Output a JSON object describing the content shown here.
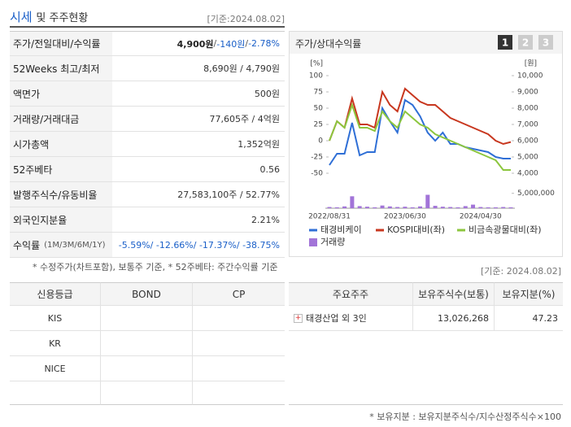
{
  "header": {
    "title_main": "시세",
    "title_rest": "및 주주현황",
    "date": "[기준:2024.08.02]"
  },
  "quote_table": {
    "rows": [
      {
        "label": "주가/전일대비/수익률",
        "value": [
          "4,900원",
          " / ",
          "-140원",
          " / ",
          "-2.78%"
        ]
      },
      {
        "label": "52Weeks 최고/최저",
        "value": [
          "8,690원 / 4,790원"
        ]
      },
      {
        "label": "액면가",
        "value": [
          "500원"
        ]
      },
      {
        "label": "거래량/거래대금",
        "value": [
          "77,605주 / 4억원"
        ]
      },
      {
        "label": "시가총액",
        "value": [
          "1,352억원"
        ]
      },
      {
        "label": "52주베타",
        "value": [
          "0.56"
        ]
      },
      {
        "label": "발행주식수/유동비율",
        "value": [
          "27,583,100주 / 52.77%"
        ]
      },
      {
        "label": "외국인지분율",
        "value": [
          "2.21%"
        ]
      },
      {
        "label": "수익률",
        "label_note": "(1M/3M/6M/1Y)",
        "value": [
          "-5.59%/ -12.66%/ -17.37%/ -38.75%"
        ]
      }
    ]
  },
  "quote_note": "* 수정주가(차트포함), 보통주 기준, * 52주베타: 주간수익률 기준",
  "holders_date": "[기준: 2024.08.02]",
  "credit_table": {
    "headers": [
      "신용등급",
      "BOND",
      "CP"
    ],
    "rows": [
      [
        "KIS"
      ],
      [
        "KR"
      ],
      [
        "NICE"
      ]
    ]
  },
  "holders_table": {
    "headers": [
      "주요주주",
      "보유주식수(보통)",
      "보유지분(%)"
    ],
    "rows": [
      [
        "태경산업 외 3인",
        "13,026,268",
        "47.23"
      ]
    ]
  },
  "holders_note": "* 보유지분 : 보유지분주식수/지수산정주식수×100",
  "chart_data": {
    "type": "line",
    "title": "주가/상대수익률",
    "buttons": [
      "1",
      "2",
      "3"
    ],
    "x": [
      "2022/08/31",
      null,
      null,
      null,
      null,
      null,
      null,
      null,
      null,
      null,
      "2023/06/30",
      null,
      null,
      null,
      null,
      null,
      null,
      null,
      null,
      null,
      "2024/04/30",
      null,
      null,
      null,
      null
    ],
    "y_unit": "[%]",
    "y2_unit": "[원]",
    "ylim": [
      -50,
      100
    ],
    "yticks": [
      -50,
      -25,
      0,
      25,
      50,
      75,
      100
    ],
    "y2lim": [
      4000,
      10000
    ],
    "y2ticks": [
      {
        "value": 4000,
        "label": "4,000"
      },
      {
        "value": 5000,
        "label": "5,000"
      },
      {
        "value": 6000,
        "label": "6,000"
      },
      {
        "value": 7000,
        "label": "7,000"
      },
      {
        "value": 8000,
        "label": "8,000"
      },
      {
        "value": 9000,
        "label": "9,000"
      },
      {
        "value": 10000,
        "label": "10,000"
      }
    ],
    "y3lim": [
      0,
      6000000
    ],
    "y3ticks": [
      {
        "value": 5000000,
        "label": "5,000,000"
      }
    ],
    "series": [
      {
        "name": "태경비케이",
        "color": "#2f6fd6",
        "axis": "y2",
        "values": [
          4500,
          5200,
          5200,
          7100,
          5100,
          5300,
          5300,
          8000,
          7200,
          6500,
          8500,
          8200,
          7500,
          6500,
          6000,
          6500,
          5800,
          5800,
          5600,
          5500,
          5400,
          5300,
          5000,
          4900,
          4900
        ]
      },
      {
        "name": "KOSPI대비(좌)",
        "color": "#c8371f",
        "values": [
          0,
          30,
          20,
          65,
          25,
          25,
          20,
          75,
          55,
          45,
          80,
          70,
          60,
          55,
          55,
          45,
          35,
          30,
          25,
          20,
          15,
          10,
          0,
          -5,
          -2
        ]
      },
      {
        "name": "비금속광물대비(좌)",
        "color": "#8cc63e",
        "values": [
          0,
          30,
          20,
          55,
          20,
          20,
          15,
          45,
          30,
          20,
          45,
          35,
          25,
          20,
          10,
          5,
          0,
          -5,
          -10,
          -15,
          -20,
          -25,
          -30,
          -45,
          -45
        ]
      },
      {
        "name": "거래량",
        "color": "#a274d8",
        "type": "bar",
        "axis": "y3",
        "values": [
          400000,
          300000,
          600000,
          4000000,
          700000,
          500000,
          300000,
          900000,
          600000,
          400000,
          500000,
          300000,
          600000,
          4500000,
          800000,
          500000,
          400000,
          300000,
          700000,
          1200000,
          400000,
          300000,
          300000,
          400000,
          300000
        ]
      }
    ]
  }
}
